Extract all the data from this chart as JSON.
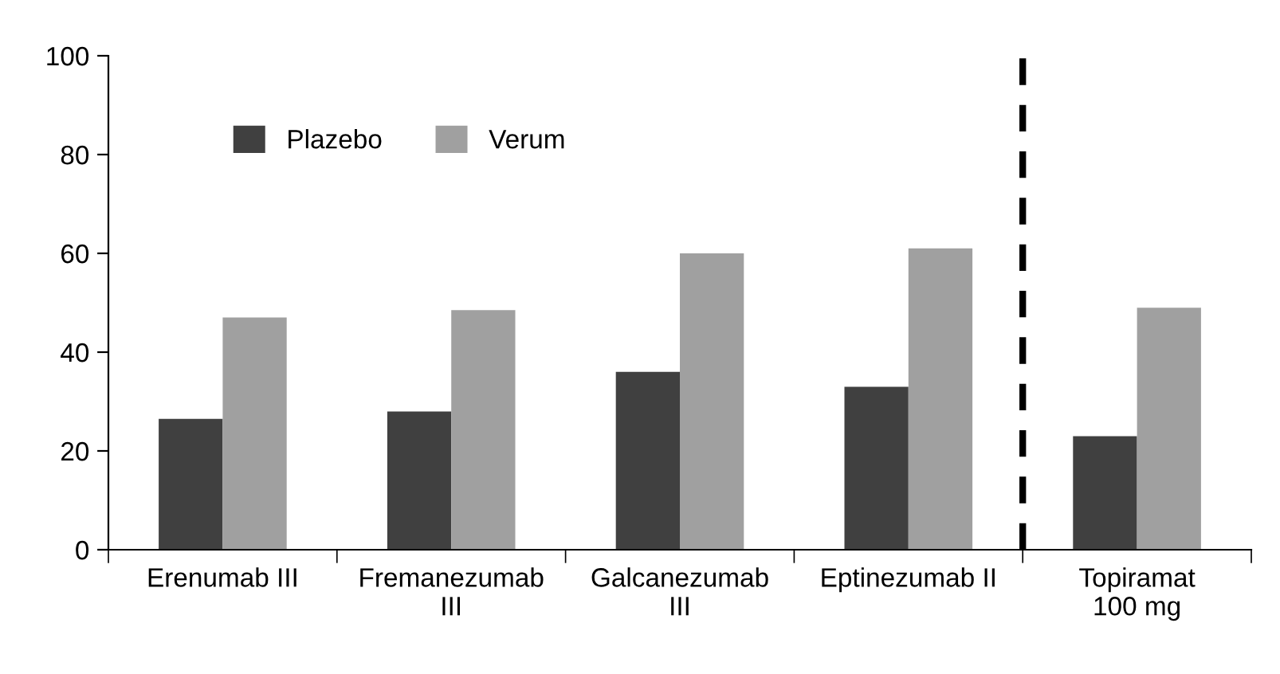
{
  "chart_data": {
    "type": "bar",
    "categories": [
      "Erenumab III",
      "Fremanezumab\nIII",
      "Galcanezumab\nIII",
      "Eptinezumab II",
      "Topiramat\n100 mg"
    ],
    "series": [
      {
        "name": "Plazebo",
        "color": "#404040",
        "values": [
          26.5,
          28,
          36,
          33,
          23
        ]
      },
      {
        "name": "Verum",
        "color": "#a0a0a0",
        "values": [
          47,
          48.5,
          60,
          61,
          49
        ]
      }
    ],
    "ylim": [
      0,
      100
    ],
    "yticks": [
      0,
      20,
      40,
      60,
      80,
      100
    ],
    "grid": false,
    "legend": "top left"
  }
}
